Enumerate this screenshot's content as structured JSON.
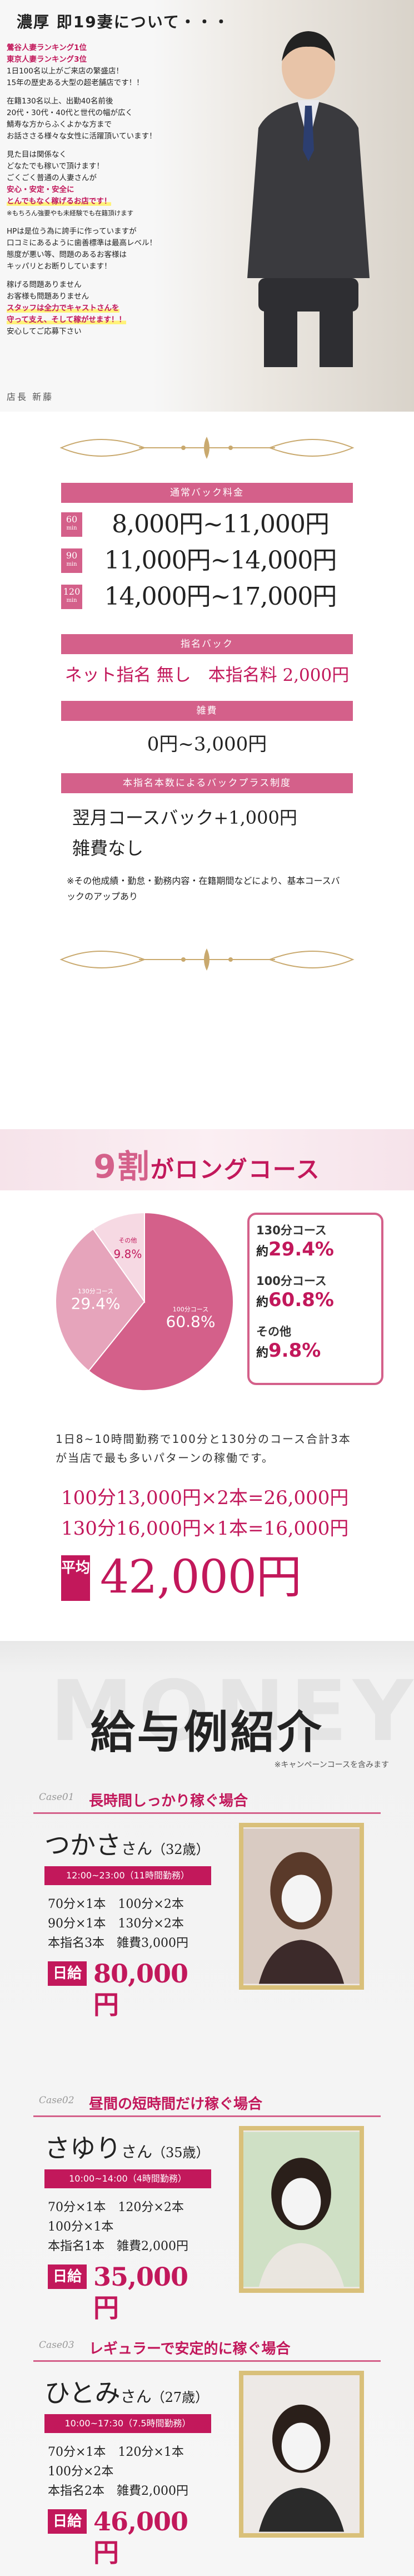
{
  "manager": {
    "title": "濃厚 即19妻について・・・",
    "p1": [
      "鶯谷人妻ランキング1位",
      "東京人妻ランキング3位",
      "1日100名以上がご来店の繁盛店！",
      "15年の歴史ある大型の超老舗店です！！"
    ],
    "p2": [
      "在籍130名以上、出勤40名前後",
      "20代・30代・40代と世代の幅が広く",
      "鯖寿な方からふくよかな方まで",
      "お話ささる様々な女性に活躍頂いています！"
    ],
    "p3": [
      "見た目は関係なく",
      "どなたでも稼いで頂けます！",
      "ごくごく普通の人妻さんが",
      "安心・安定・安全に",
      "とんでもなく稼げるお店です！",
      "※もちろん強要やも未経験でも在籍頂けます"
    ],
    "p4": [
      "HPは是位う為に誇手に作っていますが",
      "口コミにあるように歯善標準は最高レベル！",
      "態度が悪い等、問題のあるお客様は",
      "キッパリとお断りしています！"
    ],
    "p5": [
      "稼げる問題ありません",
      "お客様も問題ありません",
      "スタッフは全力でキャストさんを",
      "守って支え、そして稼がせます！！",
      "安心してご応募下さい"
    ],
    "signature": "店長 新藤"
  },
  "payment": {
    "basic_title": "通常バック料金",
    "rows": [
      {
        "min": "60",
        "unit": "min",
        "amount": "8,000円~11,000円"
      },
      {
        "min": "90",
        "unit": "min",
        "amount": "11,000円~14,000円"
      },
      {
        "min": "120",
        "unit": "min",
        "amount": "14,000円~17,000円"
      }
    ],
    "nomination_title": "指名バック",
    "nomination_text": "ネット指名 無し　本指名料 2,000円",
    "misc_title": "雑費",
    "misc_text": "0円~3,000円",
    "plus_title": "本指名本数によるバックプラス制度",
    "plus_line1": "翌月コースバック+1,000円",
    "plus_line2": "雑費なし",
    "note": "※その他成績・勤怠・勤務内容・在籍期間などにより、基本コースバックのアップあり"
  },
  "long_course": {
    "title_a": "9割",
    "title_b": "がロングコース",
    "legend": [
      {
        "label": "130分コース",
        "prefix": "約",
        "value": "29.4%"
      },
      {
        "label": "100分コース",
        "prefix": "約",
        "value": "60.8%"
      },
      {
        "label": "その他",
        "prefix": "約",
        "value": "9.8%"
      }
    ],
    "pie_labels": {
      "a": "100分コース",
      "b": "130分コース",
      "c": "その他"
    },
    "explain": "1日8~10時間勤務で100分と130分のコース合計3本が当店で最も多いパターンの稼働です。",
    "ex1": "100分13,000円×2本=26,000円",
    "ex2": "130分16,000円×1本=16,000円",
    "avg_label": "平均",
    "avg_value": "42,000円"
  },
  "chart_data": {
    "type": "pie",
    "categories": [
      "100分コース",
      "130分コース",
      "その他"
    ],
    "values": [
      60.8,
      29.4,
      9.8
    ],
    "colors": [
      "#d4608a",
      "#e6a4bb",
      "#f6d9e3"
    ]
  },
  "salary": {
    "ghost": "MONEY",
    "title": "給与例紹介",
    "note": "※キャンペーンコースを含みます",
    "cases": [
      {
        "no": "Case01",
        "title": "長時間しっかり稼ぐ場合",
        "name": "つかさ",
        "san": "さん",
        "age": "（32歳）",
        "time": "12:00~23:00（11時間勤務）",
        "rows": [
          "70分×1本　100分×2本",
          "90分×1本　130分×2本",
          "本指名3本　雑費3,000円"
        ],
        "pay_label": "日給",
        "pay_value": "80,000円"
      },
      {
        "no": "Case02",
        "title": "昼間の短時間だけ稼ぐ場合",
        "name": "さゆり",
        "san": "さん",
        "age": "（35歳）",
        "time": "10:00~14:00（4時間勤務）",
        "rows": [
          "70分×1本　120分×2本",
          "100分×1本",
          "本指名1本　雑費2,000円"
        ],
        "pay_label": "日給",
        "pay_value": "35,000円"
      },
      {
        "no": "Case03",
        "title": "レギュラーで安定的に稼ぐ場合",
        "name": "ひとみ",
        "san": "さん",
        "age": "（27歳）",
        "time": "10:00~17:30（7.5時間勤務）",
        "rows": [
          "70分×1本　120分×1本",
          "100分×2本",
          "本指名2本　雑費2,000円"
        ],
        "pay_label": "日給",
        "pay_value": "46,000円"
      }
    ]
  }
}
